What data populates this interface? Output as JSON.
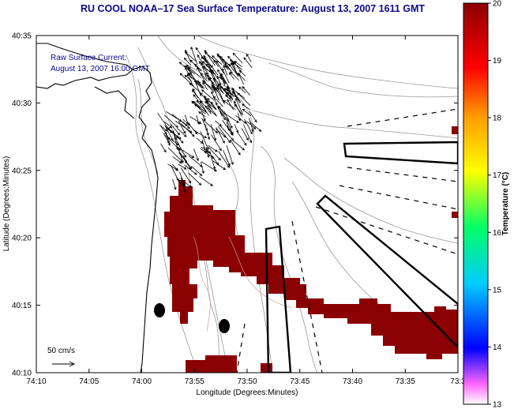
{
  "title": "RU COOL  NOAA–17  Sea Surface Temperature:  August 13, 2007 1611 GMT",
  "annotation": {
    "line1": "Raw Surface Current:",
    "line2": "August 13, 2007 16:00 GMT"
  },
  "scale": {
    "label": "50 cm/s"
  },
  "axes": {
    "xlabel": "Longitude (Degrees:Minutes)",
    "ylabel": "Latitude (Degrees:Minutes)",
    "xticks": [
      "74:10",
      "74:05",
      "74:00",
      "73:55",
      "73:50",
      "73:45",
      "73:40",
      "73:35",
      "73:3"
    ],
    "yticks": [
      "40:35",
      "40:30",
      "40:25",
      "40:20",
      "40:15",
      "40:10"
    ]
  },
  "colorbar": {
    "label": "Temperature (°C)",
    "min": 13,
    "max": 20,
    "ticks": [
      "20",
      "19",
      "18",
      "17",
      "16",
      "15",
      "14",
      "13"
    ]
  },
  "colors": {
    "sst_patch": "#8b0000",
    "title_text": "#0a0a8c",
    "bathymetry": "#999999",
    "coastline": "#000000"
  }
}
